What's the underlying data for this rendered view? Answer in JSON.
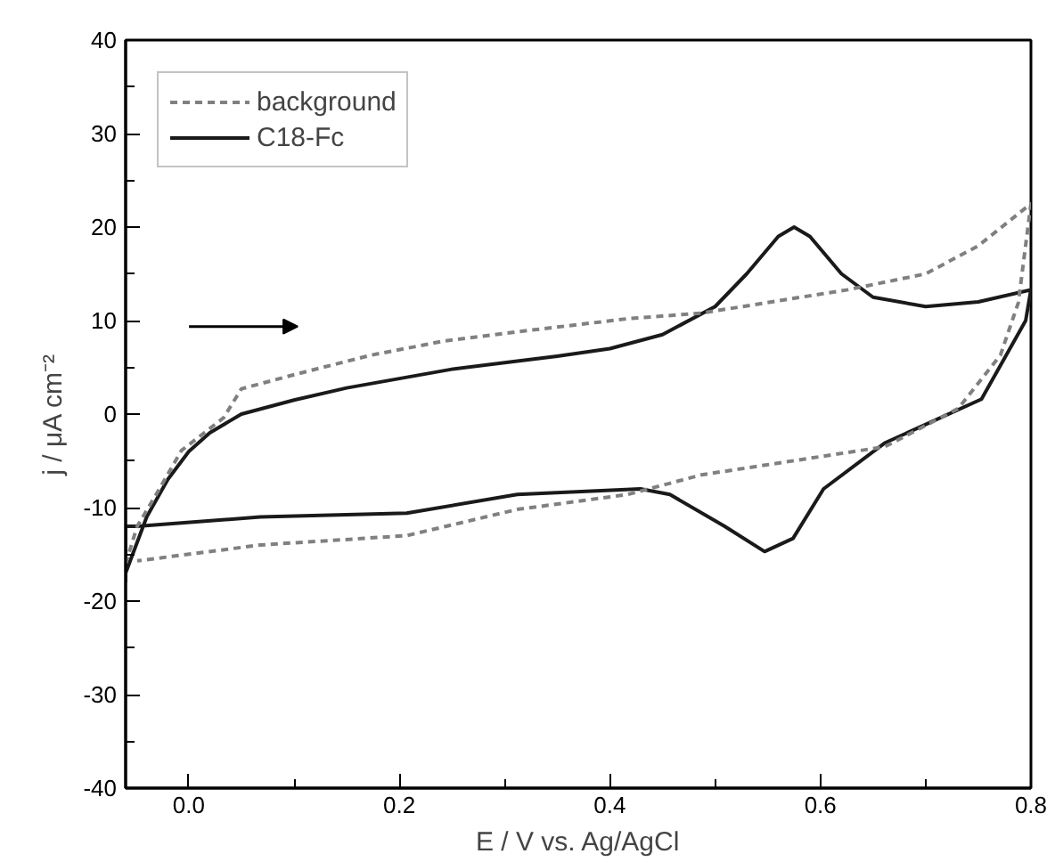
{
  "chart_data": {
    "type": "line",
    "xlabel": "E / V vs. Ag/AgCl",
    "ylabel": "j / μA cm⁻²",
    "xlim": [
      -0.06,
      0.8
    ],
    "ylim": [
      -40,
      40
    ],
    "xticks": [
      "0.0",
      0.2,
      0.4,
      0.6,
      0.8,
      {
        "value": 0.1,
        "label": null
      },
      {
        "value": 0.3,
        "label": null
      },
      {
        "value": 0.5,
        "label": null
      },
      {
        "value": 0.7,
        "label": null
      }
    ],
    "yticks": [
      -40,
      -30,
      -20,
      -10,
      0,
      10,
      20,
      30,
      40,
      {
        "value": -35,
        "label": null
      },
      {
        "value": -25,
        "label": null
      },
      {
        "value": -15,
        "label": null
      },
      {
        "value": -5,
        "label": null
      },
      {
        "value": 5,
        "label": null
      },
      {
        "value": 15,
        "label": null
      },
      {
        "value": 25,
        "label": null
      },
      {
        "value": 35,
        "label": null
      }
    ],
    "grid": false,
    "legend": "top left",
    "marker": "none",
    "series": [
      {
        "name": "background",
        "color": "#808080",
        "line_style": "dashed",
        "x": [
          -0.06,
          -0.049,
          -0.031,
          -0.007,
          0.033,
          0.05,
          0.103,
          0.173,
          0.242,
          0.312,
          0.417,
          0.487,
          0.626,
          0.7,
          0.75,
          0.8,
          0.788,
          0.771,
          0.731,
          0.661,
          0.487,
          0.417,
          0.312,
          0.207,
          0.068,
          -0.049
        ],
        "values": [
          -16,
          -12,
          -8.6,
          -3.9,
          -0.4,
          2.7,
          4.3,
          6.3,
          7.8,
          8.8,
          10.2,
          10.8,
          13.3,
          15,
          18,
          22.5,
          11.9,
          6.3,
          0.6,
          -3.5,
          -6.5,
          -8.6,
          -10.2,
          -13,
          -14,
          -15.7
        ]
      },
      {
        "name": "C18-Fc",
        "color": "#1a1a1a",
        "line_style": "solid",
        "x": [
          -0.06,
          -0.04,
          -0.02,
          0.0,
          0.02,
          0.05,
          0.1,
          0.15,
          0.2,
          0.25,
          0.3,
          0.35,
          0.4,
          0.45,
          0.5,
          0.53,
          0.56,
          0.575,
          0.59,
          0.62,
          0.65,
          0.7,
          0.75,
          0.8,
          0.795,
          0.753,
          0.661,
          0.603,
          0.574,
          0.547,
          0.509,
          0.457,
          0.429,
          0.312,
          0.207,
          0.068,
          -0.049,
          -0.06,
          -0.06
        ],
        "values": [
          -17,
          -11,
          -7,
          -4,
          -2,
          0,
          1.5,
          2.8,
          3.8,
          4.8,
          5.5,
          6.2,
          7,
          8.5,
          11.5,
          15,
          19,
          20,
          19,
          15,
          12.5,
          11.5,
          12,
          13.3,
          10,
          1.6,
          -3.1,
          -8,
          -13.3,
          -14.7,
          -12,
          -8.6,
          -8,
          -8.6,
          -10.6,
          -11,
          -12,
          -12,
          -18
        ]
      }
    ]
  }
}
